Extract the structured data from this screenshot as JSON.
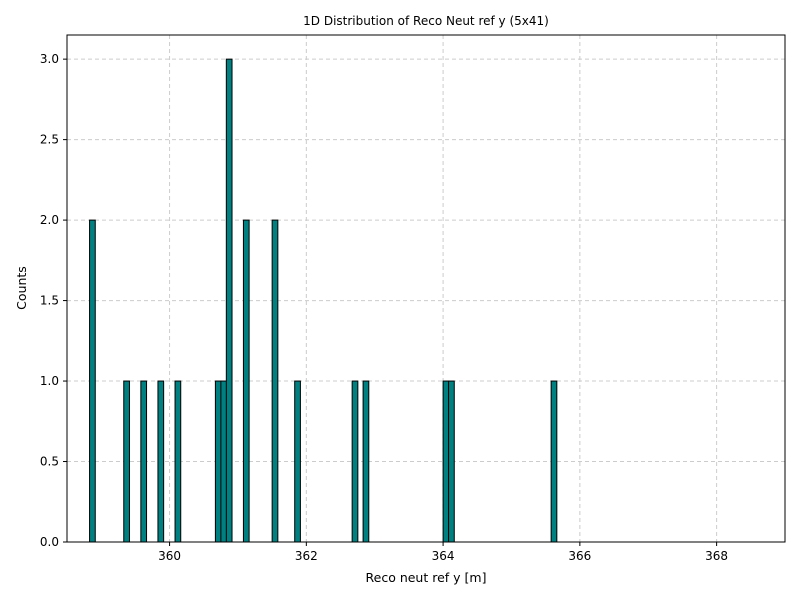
{
  "chart_data": {
    "type": "bar",
    "title": "1D Distribution of Reco Neut ref y (5x41)",
    "xlabel": "Reco neut ref y [m]",
    "ylabel": "Counts",
    "xlim": [
      358.5,
      369.0
    ],
    "ylim": [
      0.0,
      3.15
    ],
    "x_ticks": [
      360,
      362,
      364,
      366,
      368
    ],
    "x_tick_labels": [
      "360",
      "362",
      "364",
      "366",
      "368"
    ],
    "y_ticks": [
      0.0,
      0.5,
      1.0,
      1.5,
      2.0,
      2.5,
      3.0
    ],
    "y_tick_labels": [
      "0.0",
      "0.5",
      "1.0",
      "1.5",
      "2.0",
      "2.5",
      "3.0"
    ],
    "grid": true,
    "bar_color": "#008080",
    "edge_color": "#000000",
    "range": [
      358.7,
      368.8
    ],
    "bin_width": 0.0833,
    "bins": [
      {
        "x": 358.83,
        "count": 2
      },
      {
        "x": 359.33,
        "count": 1
      },
      {
        "x": 359.58,
        "count": 1
      },
      {
        "x": 359.83,
        "count": 1
      },
      {
        "x": 360.08,
        "count": 1
      },
      {
        "x": 360.67,
        "count": 1
      },
      {
        "x": 360.75,
        "count": 1
      },
      {
        "x": 360.83,
        "count": 3
      },
      {
        "x": 361.08,
        "count": 2
      },
      {
        "x": 361.5,
        "count": 2
      },
      {
        "x": 361.83,
        "count": 1
      },
      {
        "x": 362.67,
        "count": 1
      },
      {
        "x": 362.83,
        "count": 1
      },
      {
        "x": 364.0,
        "count": 1
      },
      {
        "x": 364.08,
        "count": 1
      },
      {
        "x": 365.58,
        "count": 1
      }
    ]
  }
}
